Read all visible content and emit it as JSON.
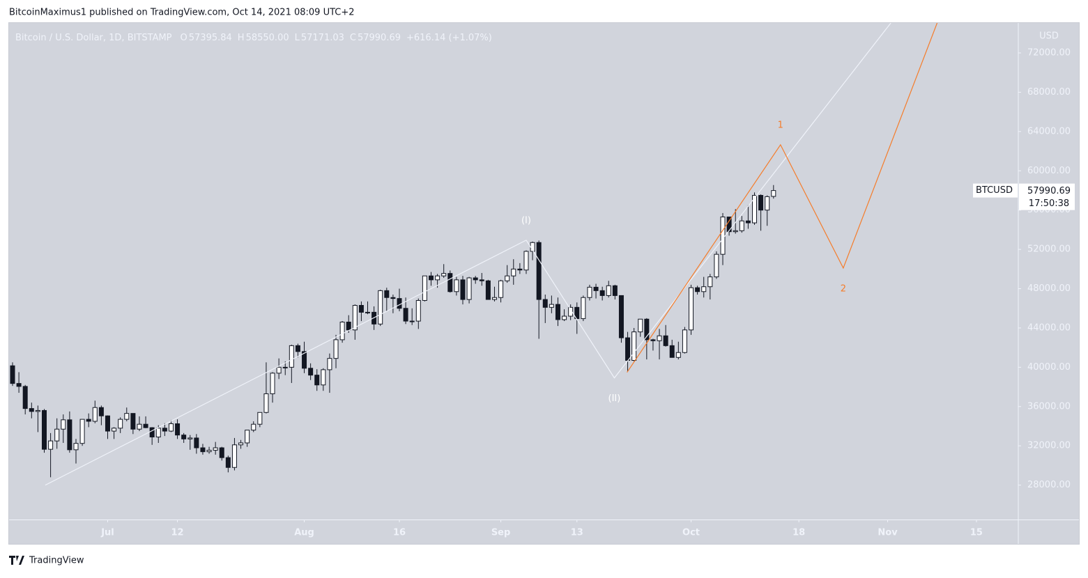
{
  "publisher": "BitcoinMaximus1 published on TradingView.com, Oct 14, 2021 08:09 UTC+2",
  "brand": "TradingView",
  "chart_data": {
    "type": "candlestick",
    "symbol_title": "Bitcoin / U.S. Dollar, 1D, BITSTAMP",
    "ohlc_header": [
      {
        "key": "O",
        "text": "57395.84"
      },
      {
        "key": "H",
        "text": "58550.00"
      },
      {
        "key": "L",
        "text": "57171.03"
      },
      {
        "key": "C",
        "text": "57990.69"
      }
    ],
    "change": "+616.14 (+1.07%)",
    "currency": "USD",
    "last_price": {
      "symbol": "BTCUSD",
      "value": 57990.69,
      "label": "57990.69",
      "countdown": "17:50:38"
    },
    "up_color": "#ffffff",
    "down_color": "#131722",
    "wick_color": "#131722",
    "background": "#d1d4dc",
    "open": [
      40150,
      38350,
      38050,
      35800,
      35500,
      35600,
      31650,
      32500,
      33700,
      34650,
      31600,
      32250,
      34700,
      34500,
      35900,
      35050,
      33500,
      33800,
      34700,
      35300,
      33700,
      34200,
      33850,
      32900,
      33800,
      33500,
      34250,
      33100,
      32700,
      32800,
      31800,
      31400,
      31550,
      31800,
      30800,
      29800,
      32100,
      32300,
      33600,
      34200,
      35400,
      37300,
      39400,
      40000,
      40000,
      42200,
      41600,
      39900,
      39200,
      38200,
      39750,
      40900,
      42800,
      44600,
      43800,
      46300,
      45600,
      45600,
      44400,
      47800,
      47100,
      47000,
      46000,
      44700,
      44700,
      46800,
      49300,
      48900,
      49300,
      49550,
      47700,
      48900,
      46900,
      49100,
      48900,
      48800,
      46900,
      47100,
      48800,
      49300,
      50000,
      49900,
      51800,
      52700,
      46900,
      46100,
      46400,
      44850,
      45200,
      46100,
      44950,
      47100,
      48150,
      47800,
      47300,
      48300,
      47300,
      43000,
      40700,
      43600,
      44900,
      42800,
      42700,
      43200,
      42200,
      41000,
      41500,
      43800,
      48100,
      47700,
      48200,
      49200,
      51500,
      55300,
      53800,
      53900,
      54900,
      54700,
      57500,
      56000,
      57395.84
    ],
    "high": [
      40500,
      39500,
      38200,
      36400,
      36100,
      35750,
      33300,
      34800,
      35200,
      35500,
      32700,
      34700,
      35300,
      36600,
      36100,
      35100,
      33900,
      34900,
      35900,
      35300,
      35000,
      35000,
      33900,
      34100,
      34300,
      34600,
      34700,
      33300,
      33100,
      33200,
      32200,
      31900,
      32400,
      31900,
      31000,
      32800,
      32600,
      33600,
      34500,
      35400,
      40500,
      39500,
      40900,
      40600,
      42300,
      42400,
      42600,
      40400,
      39800,
      39900,
      41400,
      43300,
      44700,
      45300,
      46400,
      46700,
      46700,
      46200,
      47900,
      48100,
      47400,
      48000,
      47100,
      46000,
      47000,
      49300,
      49700,
      49500,
      50500,
      49850,
      49200,
      49300,
      49200,
      49300,
      49600,
      48900,
      48200,
      48900,
      50400,
      51000,
      50600,
      51900,
      52800,
      52900,
      47400,
      47300,
      47100,
      45900,
      46400,
      46600,
      47300,
      48400,
      48500,
      48200,
      48800,
      48400,
      47300,
      43600,
      44000,
      44900,
      45000,
      42900,
      43900,
      44300,
      42800,
      42600,
      44100,
      48400,
      48300,
      49200,
      49500,
      51800,
      55700,
      55300,
      56100,
      55400,
      56500,
      57800,
      57600,
      57500,
      58550
    ],
    "low": [
      38100,
      37400,
      35200,
      34800,
      33400,
      31300,
      28800,
      31700,
      32300,
      31300,
      30200,
      32000,
      33900,
      34300,
      34100,
      32700,
      32700,
      33300,
      34500,
      33200,
      33500,
      33800,
      32100,
      32300,
      33000,
      33400,
      32700,
      32300,
      31600,
      31200,
      31100,
      31200,
      31100,
      30500,
      29300,
      29500,
      31700,
      31900,
      33400,
      33900,
      35300,
      36400,
      38800,
      39200,
      38400,
      41000,
      39400,
      38700,
      37600,
      37600,
      37400,
      39900,
      42500,
      43500,
      42800,
      44700,
      45400,
      43800,
      44200,
      45700,
      45500,
      45700,
      44400,
      44300,
      43900,
      46700,
      48300,
      48100,
      49100,
      47600,
      47300,
      46400,
      46500,
      48500,
      48300,
      46900,
      46700,
      46600,
      48600,
      48400,
      49500,
      49500,
      50900,
      42900,
      44500,
      45500,
      44200,
      44700,
      44800,
      43400,
      44700,
      46800,
      47000,
      46800,
      47100,
      46900,
      42500,
      39600,
      40600,
      43100,
      40800,
      41700,
      40800,
      42100,
      41000,
      40800,
      41400,
      43300,
      47400,
      47100,
      46900,
      49000,
      50400,
      53400,
      53600,
      53700,
      54100,
      54500,
      53900,
      54400,
      57171.03
    ],
    "close": [
      38350,
      38050,
      35800,
      35500,
      35600,
      31650,
      32500,
      33700,
      34650,
      31600,
      32250,
      34700,
      34500,
      35900,
      35050,
      33500,
      33800,
      34700,
      35300,
      33700,
      34200,
      33850,
      32900,
      33800,
      33500,
      34250,
      33100,
      32700,
      32800,
      31800,
      31400,
      31550,
      31800,
      30800,
      29800,
      32100,
      32300,
      33600,
      34200,
      35400,
      37300,
      39400,
      40000,
      40000,
      42200,
      41600,
      39900,
      39200,
      38200,
      39750,
      40900,
      42800,
      44600,
      43800,
      46300,
      45600,
      45600,
      44400,
      47800,
      47100,
      47000,
      46000,
      44700,
      44700,
      46800,
      49300,
      48900,
      49300,
      49550,
      47700,
      48900,
      46900,
      49100,
      48900,
      48800,
      46900,
      47100,
      48800,
      49300,
      50000,
      49900,
      51800,
      52700,
      46900,
      46100,
      46400,
      44850,
      45200,
      46100,
      44950,
      47100,
      48150,
      47800,
      47300,
      48300,
      47300,
      43000,
      40700,
      43600,
      44900,
      42800,
      42700,
      43200,
      42200,
      41000,
      41500,
      43800,
      48100,
      47700,
      48200,
      49200,
      51500,
      55300,
      53800,
      53900,
      54900,
      54700,
      57500,
      56000,
      57370,
      57990.69
    ],
    "xlim": [
      -0.55,
      158.6
    ],
    "xticks": [
      {
        "value": 15,
        "label": "Jul"
      },
      {
        "value": 26,
        "label": "12"
      },
      {
        "value": 46,
        "label": "Aug"
      },
      {
        "value": 61,
        "label": "16"
      },
      {
        "value": 77,
        "label": "Sep"
      },
      {
        "value": 89,
        "label": "13"
      },
      {
        "value": 107,
        "label": "Oct"
      },
      {
        "value": 124,
        "label": "18"
      },
      {
        "value": 138,
        "label": "Nov"
      },
      {
        "value": 152,
        "label": "15"
      }
    ],
    "ylim": [
      24500,
      75050
    ],
    "yticks": [
      {
        "value": 28000,
        "label": "28000.00"
      },
      {
        "value": 32000,
        "label": "32000.00"
      },
      {
        "value": 36000,
        "label": "36000.00"
      },
      {
        "value": 40000,
        "label": "40000.00"
      },
      {
        "value": 44000,
        "label": "44000.00"
      },
      {
        "value": 48000,
        "label": "48000.00"
      },
      {
        "value": 52000,
        "label": "52000.00"
      },
      {
        "value": 56000,
        "label": "56000.00"
      },
      {
        "value": 60000,
        "label": "60000.00"
      },
      {
        "value": 64000,
        "label": "64000.00"
      },
      {
        "value": 68000,
        "label": "68000.00"
      },
      {
        "value": 72000,
        "label": "72000.00"
      }
    ],
    "drawings": [
      {
        "color": "#f0f3fa",
        "points": [
          [
            5.16,
            28000
          ],
          [
            81,
            52940
          ]
        ],
        "labels": [
          null,
          null
        ]
      },
      {
        "color": "#f0f3fa",
        "points": [
          [
            81,
            52940
          ],
          [
            94.9,
            38910
          ],
          [
            138.5,
            75050
          ]
        ],
        "labels": [
          "(I)",
          "(II)",
          null
        ]
      },
      {
        "color": "#f57c2a",
        "points": [
          [
            96.9,
            39480
          ],
          [
            121.1,
            62650
          ],
          [
            131,
            50100
          ],
          [
            145.8,
            75050
          ]
        ],
        "labels": [
          null,
          "1",
          "2",
          null
        ]
      }
    ]
  }
}
